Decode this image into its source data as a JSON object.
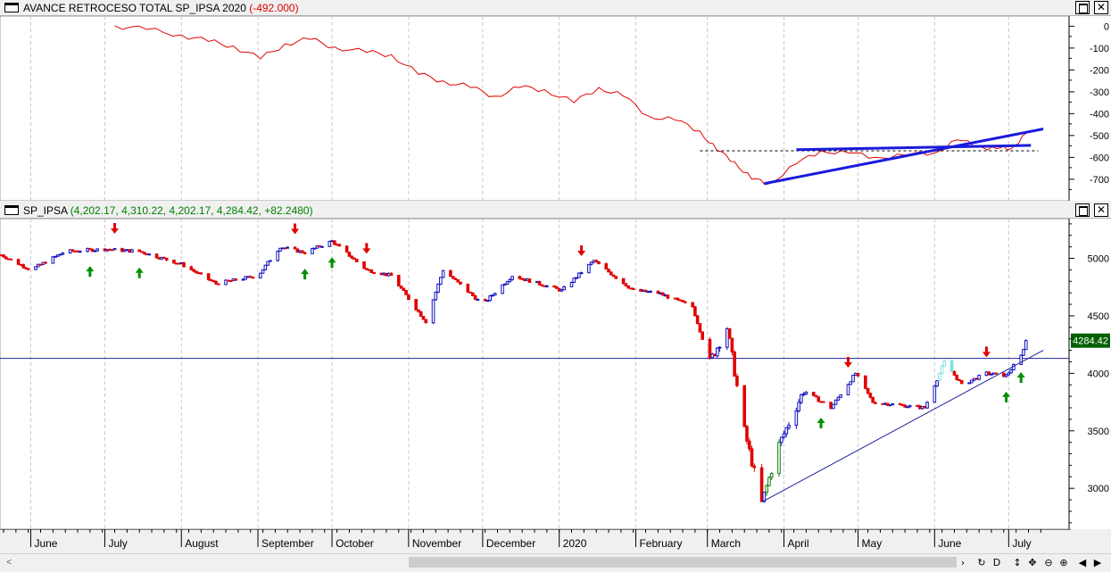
{
  "top_pane": {
    "title_prefix": "AVANCE RETROCESO TOTAL SP_IPSA 2020 ",
    "title_value": "(-492.000)",
    "title_value_color": "#e00000"
  },
  "bottom_pane": {
    "title_name": "SP_IPSA ",
    "title_values": "(4,202.17, 4,310.22, 4,202.17, 4,284.42, +82.2480)",
    "title_values_color": "#008000",
    "last_price_label": "4284.42"
  },
  "colors": {
    "adv_line": "#e00000",
    "trend_blue": "#1a1adc",
    "thin_blue": "#2020a0",
    "candle_red": "#e00000",
    "candle_blue": "#1010c0",
    "candle_green": "#108010",
    "candle_cyan": "#80e0e0",
    "arrow_red": "#e00000",
    "arrow_green": "#009000",
    "price_label_bg": "#006000",
    "price_label_fg": "#ffffff"
  },
  "window_buttons": {
    "maximize": "maximize-icon",
    "close": "✕"
  },
  "months": [
    "June",
    "July",
    "August",
    "September",
    "October",
    "November",
    "December",
    "2020",
    "February",
    "March",
    "April",
    "May",
    "June",
    "July"
  ],
  "toolbar": {
    "t1": "›",
    "t2": "↻",
    "t3": "D",
    "t4": "↕",
    "t5": "✥",
    "t6": "⊖",
    "t7": "⊕",
    "t8": "◀",
    "t9": "▶",
    "t10": "⇥"
  },
  "chart_data": [
    {
      "type": "line",
      "title": "AVANCE RETROCESO TOTAL SP_IPSA 2020",
      "last_value": -492.0,
      "y_ticks": [
        0,
        -100,
        -200,
        -300,
        -400,
        -500,
        -600,
        -700
      ],
      "ylim": [
        -770,
        30
      ],
      "x": [
        "2019-07-05",
        "2019-07-18",
        "2019-08-01",
        "2019-08-12",
        "2019-08-22",
        "2019-09-02",
        "2019-09-12",
        "2019-09-22",
        "2019-10-02",
        "2019-10-15",
        "2019-10-25",
        "2019-11-05",
        "2019-11-15",
        "2019-11-26",
        "2019-12-06",
        "2019-12-16",
        "2019-12-26",
        "2020-01-07",
        "2020-01-17",
        "2020-01-27",
        "2020-02-06",
        "2020-02-17",
        "2020-02-27",
        "2020-03-05",
        "2020-03-12",
        "2020-03-19",
        "2020-03-26",
        "2020-04-06",
        "2020-04-16",
        "2020-04-27",
        "2020-05-08",
        "2020-05-20",
        "2020-06-01",
        "2020-06-10",
        "2020-06-19",
        "2020-06-26",
        "2020-07-02",
        "2020-07-08"
      ],
      "series": [
        {
          "values": [
            2,
            -15,
            -40,
            -70,
            -90,
            -150,
            -80,
            -60,
            -95,
            -120,
            -130,
            -220,
            -250,
            -280,
            -320,
            -280,
            -290,
            -350,
            -280,
            -320,
            -410,
            -430,
            -480,
            -570,
            -620,
            -700,
            -720,
            -630,
            -570,
            -580,
            -600,
            -590,
            -580,
            -520,
            -550,
            -560,
            -560,
            -490
          ]
        }
      ],
      "annotations": [
        {
          "type": "hline",
          "y": -570,
          "from": "2020-02-27",
          "to": "2020-07-13",
          "style": "dashed"
        },
        {
          "type": "trendline",
          "from": [
            "2020-03-24",
            -720
          ],
          "to": [
            "2020-07-15",
            -470
          ]
        },
        {
          "type": "trendline",
          "from": [
            "2020-04-06",
            -565
          ],
          "to": [
            "2020-07-10",
            -545
          ]
        }
      ]
    },
    {
      "type": "candlestick",
      "title": "SP_IPSA",
      "last": {
        "open": 4202.17,
        "high": 4310.22,
        "low": 4202.17,
        "close": 4284.42,
        "change": 82.248
      },
      "y_ticks": [
        3000,
        3500,
        4000,
        4500,
        5000
      ],
      "ylim": [
        2660,
        5330
      ],
      "x": [
        "2019-05-20",
        "2019-06-01",
        "2019-06-15",
        "2019-07-01",
        "2019-07-15",
        "2019-08-01",
        "2019-08-15",
        "2019-09-01",
        "2019-09-10",
        "2019-09-20",
        "2019-10-01",
        "2019-10-15",
        "2019-10-25",
        "2019-11-08",
        "2019-11-15",
        "2019-12-01",
        "2019-12-13",
        "2020-01-02",
        "2020-01-15",
        "2020-01-31",
        "2020-02-10",
        "2020-02-24",
        "2020-03-02",
        "2020-03-09",
        "2020-03-16",
        "2020-03-23",
        "2020-03-30",
        "2020-04-09",
        "2020-04-20",
        "2020-04-30",
        "2020-05-07",
        "2020-05-15",
        "2020-05-28",
        "2020-06-05",
        "2020-06-12",
        "2020-06-22",
        "2020-06-30",
        "2020-07-06",
        "2020-07-08"
      ],
      "close": [
        5030,
        4900,
        5060,
        5080,
        5060,
        4950,
        4780,
        4850,
        5100,
        5050,
        5150,
        4900,
        4850,
        4450,
        4900,
        4600,
        4850,
        4720,
        4980,
        4720,
        4700,
        4580,
        4100,
        4400,
        3500,
        2870,
        3380,
        3850,
        3700,
        4000,
        3750,
        3730,
        3700,
        4100,
        3900,
        4000,
        3980,
        4150,
        4284
      ],
      "colors_legend": {
        "red": "down",
        "blue": "up",
        "green": "up after signal",
        "cyan": "neutral"
      },
      "annotations": [
        {
          "type": "hline",
          "y": 4130,
          "style": "solid"
        },
        {
          "type": "trendline",
          "from": [
            "2020-03-23",
            2880
          ],
          "to": [
            "2020-07-15",
            4200
          ]
        },
        {
          "type": "price_label",
          "y": 4284.42,
          "text": "4284.42"
        }
      ],
      "signals": [
        {
          "date": "2019-06-25",
          "dir": "up"
        },
        {
          "date": "2019-07-05",
          "dir": "down"
        },
        {
          "date": "2019-07-15",
          "dir": "up"
        },
        {
          "date": "2019-09-16",
          "dir": "down"
        },
        {
          "date": "2019-09-20",
          "dir": "up"
        },
        {
          "date": "2019-10-01",
          "dir": "up"
        },
        {
          "date": "2019-10-15",
          "dir": "down"
        },
        {
          "date": "2020-01-10",
          "dir": "down"
        },
        {
          "date": "2020-04-16",
          "dir": "up"
        },
        {
          "date": "2020-04-27",
          "dir": "down"
        },
        {
          "date": "2020-06-22",
          "dir": "down"
        },
        {
          "date": "2020-06-30",
          "dir": "up"
        },
        {
          "date": "2020-07-06",
          "dir": "up"
        }
      ]
    }
  ]
}
